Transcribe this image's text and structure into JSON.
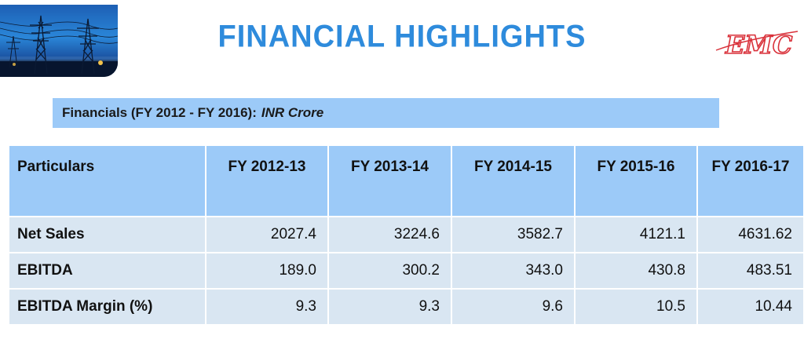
{
  "header": {
    "title": "FINANCIAL HIGHLIGHTS",
    "logo_text": "EMC"
  },
  "banner": {
    "text": "Financials (FY 2012 - FY 2016):",
    "unit": "INR Crore"
  },
  "table": {
    "columns": [
      "Particulars",
      "FY 2012-13",
      "FY 2013-14",
      "FY 2014-15",
      "FY 2015-16",
      "FY 2016-17"
    ],
    "rows": [
      {
        "label": "Net Sales",
        "values": [
          "2027.4",
          "3224.6",
          "3582.7",
          "4121.1",
          "4631.62"
        ]
      },
      {
        "label": "EBITDA",
        "values": [
          "189.0",
          "300.2",
          "343.0",
          "430.8",
          "483.51"
        ]
      },
      {
        "label": "EBITDA Margin (%)",
        "values": [
          "9.3",
          "9.3",
          "9.6",
          "10.5",
          "10.44"
        ]
      }
    ]
  },
  "colors": {
    "title": "#2e8bdc",
    "header_fill": "#9ccaf8",
    "row_fill": "#d9e6f2",
    "logo": "#d9313a"
  },
  "icons": {
    "header_photo": "power-transmission-towers",
    "logo": "emc-logo"
  }
}
